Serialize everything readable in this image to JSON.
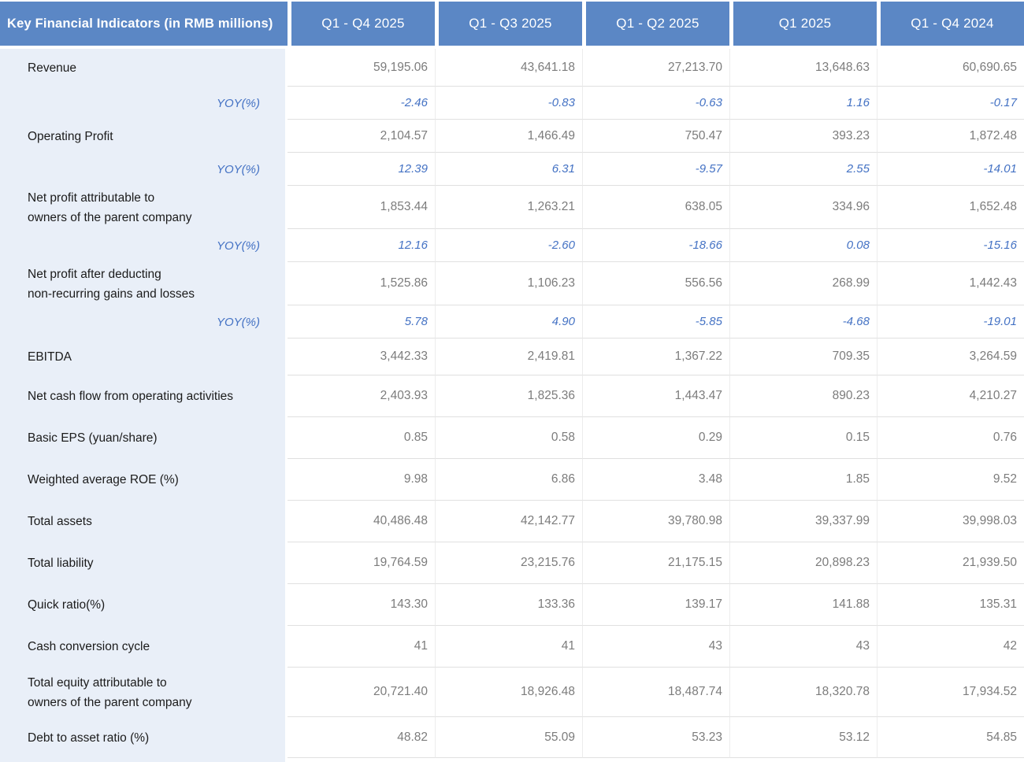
{
  "colors": {
    "header_bg": "#5B87C5",
    "label_column_bg": "#E9EFF8",
    "yoy_text": "#4472C4",
    "value_text": "#7C7C7C",
    "label_text": "#1B1B1B"
  },
  "chart_data": {
    "type": "table",
    "title": "Key Financial Indicators (in RMB millions)",
    "columns": [
      "Q1 - Q4 2025",
      "Q1 - Q3 2025",
      "Q1 - Q2 2025",
      "Q1 2025",
      "Q1 - Q4 2024"
    ],
    "rows": [
      {
        "kind": "metric",
        "label": "Revenue",
        "values": [
          "59,195.06",
          "43,641.18",
          "27,213.70",
          "13,648.63",
          "60,690.65"
        ]
      },
      {
        "kind": "yoy",
        "label": "YOY(%)",
        "values": [
          "-2.46",
          "-0.83",
          "-0.63",
          "1.16",
          "-0.17"
        ]
      },
      {
        "kind": "metric",
        "label": "Operating Profit",
        "values": [
          "2,104.57",
          "1,466.49",
          "750.47",
          "393.23",
          "1,872.48"
        ]
      },
      {
        "kind": "yoy",
        "label": "YOY(%)",
        "values": [
          "12.39",
          "6.31",
          "-9.57",
          "2.55",
          "-14.01"
        ]
      },
      {
        "kind": "metric",
        "label": "Net profit attributable to\nowners of the parent company",
        "values": [
          "1,853.44",
          "1,263.21",
          "638.05",
          "334.96",
          "1,652.48"
        ]
      },
      {
        "kind": "yoy",
        "label": "YOY(%)",
        "values": [
          "12.16",
          "-2.60",
          "-18.66",
          "0.08",
          "-15.16"
        ]
      },
      {
        "kind": "metric",
        "label": "Net profit after deducting\nnon-recurring gains and losses",
        "values": [
          "1,525.86",
          "1,106.23",
          "556.56",
          "268.99",
          "1,442.43"
        ]
      },
      {
        "kind": "yoy",
        "label": "YOY(%)",
        "values": [
          "5.78",
          "4.90",
          "-5.85",
          "-4.68",
          "-19.01"
        ]
      },
      {
        "kind": "metric",
        "label": "EBITDA",
        "values": [
          "3,442.33",
          "2,419.81",
          "1,367.22",
          "709.35",
          "3,264.59"
        ]
      },
      {
        "kind": "metric",
        "label": "Net cash flow from operating activities",
        "values": [
          "2,403.93",
          "1,825.36",
          "1,443.47",
          "890.23",
          "4,210.27"
        ]
      },
      {
        "kind": "metric",
        "label": "Basic EPS (yuan/share)",
        "values": [
          "0.85",
          "0.58",
          "0.29",
          "0.15",
          "0.76"
        ]
      },
      {
        "kind": "metric",
        "label": "Weighted average ROE (%)",
        "values": [
          "9.98",
          "6.86",
          "3.48",
          "1.85",
          "9.52"
        ]
      },
      {
        "kind": "metric",
        "label": "Total assets",
        "values": [
          "40,486.48",
          "42,142.77",
          "39,780.98",
          "39,337.99",
          "39,998.03"
        ]
      },
      {
        "kind": "metric",
        "label": "Total liability",
        "values": [
          "19,764.59",
          "23,215.76",
          "21,175.15",
          "20,898.23",
          "21,939.50"
        ]
      },
      {
        "kind": "metric",
        "label": "Quick ratio(%)",
        "values": [
          "143.30",
          "133.36",
          "139.17",
          "141.88",
          "135.31"
        ]
      },
      {
        "kind": "metric",
        "label": "Cash conversion cycle",
        "values": [
          "41",
          "41",
          "43",
          "43",
          "42"
        ]
      },
      {
        "kind": "metric",
        "label": "Total equity attributable to\nowners of the parent company",
        "values": [
          "20,721.40",
          "18,926.48",
          "18,487.74",
          "18,320.78",
          "17,934.52"
        ]
      },
      {
        "kind": "metric",
        "label": "Debt to asset ratio (%)",
        "values": [
          "48.82",
          "55.09",
          "53.23",
          "53.12",
          "54.85"
        ]
      }
    ]
  }
}
